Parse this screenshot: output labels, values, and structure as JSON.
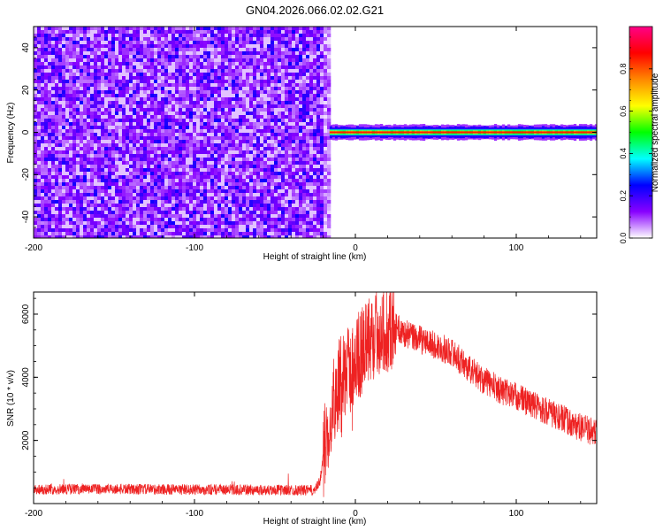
{
  "title": "GN04.2026.066.02.02.G21",
  "chart_data": [
    {
      "type": "heatmap",
      "name": "spectrogram",
      "xlabel": "Height of straight line (km)",
      "ylabel": "Frequency (Hz)",
      "xlim": [
        -200,
        150
      ],
      "ylim": [
        -50,
        50
      ],
      "xticks": [
        -200,
        -100,
        0,
        100
      ],
      "xtick_labels": [
        "-200",
        "-100",
        "0",
        "100"
      ],
      "yticks": [
        -40,
        -20,
        0,
        20,
        40
      ],
      "ytick_labels": [
        "-40",
        "-20",
        "0",
        "20",
        "40"
      ],
      "noise_region_x": [
        -200,
        -16
      ],
      "signal_region_x": [
        -16,
        150
      ],
      "signal_frequency_hz": 0,
      "colorbar": {
        "label": "Normalized spectral amplitude",
        "range": [
          0,
          1
        ],
        "ticks": [
          0.0,
          0.2,
          0.4,
          0.6,
          0.8
        ],
        "tick_labels": [
          "0.0",
          "0.2",
          "0.4",
          "0.6",
          "0.8"
        ],
        "colors": [
          "#ffffff",
          "#8800ff",
          "#0000ff",
          "#00ffff",
          "#00ff00",
          "#ffff00",
          "#ff8800",
          "#ff0000",
          "#ff0088"
        ]
      }
    },
    {
      "type": "line",
      "name": "snr",
      "xlabel": "Height of straight line (km)",
      "ylabel": "SNR (10 * v/v)",
      "xlim": [
        -200,
        150
      ],
      "ylim": [
        0,
        6700
      ],
      "xticks": [
        -200,
        -100,
        0,
        100
      ],
      "xtick_labels": [
        "-200",
        "-100",
        "0",
        "100"
      ],
      "yticks": [
        2000,
        4000,
        6000
      ],
      "ytick_labels": [
        "2000",
        "4000",
        "6000"
      ],
      "color": "#ee2222",
      "keypoints": {
        "x": [
          -200,
          -150,
          -100,
          -50,
          -25,
          -22,
          -20,
          -16,
          -12,
          -8,
          -4,
          0,
          5,
          10,
          15,
          20,
          25,
          30,
          40,
          50,
          60,
          70,
          80,
          90,
          100,
          110,
          120,
          130,
          140,
          150
        ],
        "y": [
          450,
          460,
          440,
          430,
          420,
          700,
          1500,
          2700,
          3600,
          4000,
          4200,
          4500,
          4900,
          5200,
          5500,
          5600,
          5600,
          5400,
          5200,
          5000,
          4800,
          4300,
          3900,
          3600,
          3400,
          3150,
          2900,
          2650,
          2400,
          2250
        ]
      },
      "noise_amplitude_low": 170,
      "noise_amplitude_high": 450
    }
  ]
}
